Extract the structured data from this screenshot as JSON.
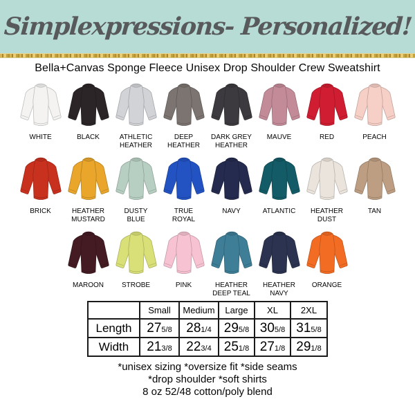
{
  "header": {
    "brand": "Simplexpressions- Personalized!",
    "bg_color": "#b6dcd5",
    "text_color": "#58595b",
    "glitter_color": "#c5a139"
  },
  "product": {
    "title": "Bella+Canvas Sponge Fleece Unisex Drop Shoulder Crew Sweatshirt"
  },
  "colors": {
    "rows": [
      [
        {
          "name": "White",
          "label_lines": [
            "WHITE"
          ],
          "hex": "#f4f3f1"
        },
        {
          "name": "Black",
          "label_lines": [
            "BLACK"
          ],
          "hex": "#2b2527"
        },
        {
          "name": "Athletic Heather",
          "label_lines": [
            "ATHLETIC",
            "HEATHER"
          ],
          "hex": "#d2d3d7"
        },
        {
          "name": "Deep Heather",
          "label_lines": [
            "DEEP",
            "HEATHER"
          ],
          "hex": "#7b7470"
        },
        {
          "name": "Dark Grey Heather",
          "label_lines": [
            "DARK GREY",
            "HEATHER"
          ],
          "hex": "#3c3a3e"
        },
        {
          "name": "Mauve",
          "label_lines": [
            "MAUVE"
          ],
          "hex": "#c38b98"
        },
        {
          "name": "Red",
          "label_lines": [
            "RED"
          ],
          "hex": "#d01d31"
        },
        {
          "name": "Peach",
          "label_lines": [
            "PEACH"
          ],
          "hex": "#f6cfc6"
        }
      ],
      [
        {
          "name": "Brick",
          "label_lines": [
            "BRICK"
          ],
          "hex": "#c9311f"
        },
        {
          "name": "Heather Mustard",
          "label_lines": [
            "HEATHER",
            "MUSTARD"
          ],
          "hex": "#e9a62b"
        },
        {
          "name": "Dusty Blue",
          "label_lines": [
            "DUSTY",
            "BLUE"
          ],
          "hex": "#b7cfc2"
        },
        {
          "name": "True Royal",
          "label_lines": [
            "TRUE",
            "ROYAL"
          ],
          "hex": "#2353c2"
        },
        {
          "name": "Navy",
          "label_lines": [
            "NAVY"
          ],
          "hex": "#252b4e"
        },
        {
          "name": "Atlantic",
          "label_lines": [
            "ATLANTIC"
          ],
          "hex": "#135b66"
        },
        {
          "name": "Heather Dust",
          "label_lines": [
            "HEATHER",
            "DUST"
          ],
          "hex": "#eae4dc"
        },
        {
          "name": "Tan",
          "label_lines": [
            "TAN"
          ],
          "hex": "#bd9e82"
        }
      ],
      [
        {
          "name": "Maroon",
          "label_lines": [
            "MAROON"
          ],
          "hex": "#441b23"
        },
        {
          "name": "Strobe",
          "label_lines": [
            "STROBE"
          ],
          "hex": "#d9e077"
        },
        {
          "name": "Pink",
          "label_lines": [
            "PINK"
          ],
          "hex": "#f7c3d3"
        },
        {
          "name": "Heather Deep Teal",
          "label_lines": [
            "HEATHER",
            "DEEP TEAL"
          ],
          "hex": "#3e7e96"
        },
        {
          "name": "Heather Navy",
          "label_lines": [
            "HEATHER",
            "NAVY"
          ],
          "hex": "#2b3350"
        },
        {
          "name": "Orange",
          "label_lines": [
            "ORANGE"
          ],
          "hex": "#f36c23"
        }
      ]
    ]
  },
  "size_table": {
    "corner": "",
    "columns": [
      "Small",
      "Medium",
      "Large",
      "XL",
      "2XL"
    ],
    "rows": [
      {
        "label": "Length",
        "values": [
          {
            "whole": "27",
            "frac": "5/8"
          },
          {
            "whole": "28",
            "frac": "1/4"
          },
          {
            "whole": "29",
            "frac": "5/8"
          },
          {
            "whole": "30",
            "frac": "5/8"
          },
          {
            "whole": "31",
            "frac": "5/8"
          }
        ]
      },
      {
        "label": "Width",
        "values": [
          {
            "whole": "21",
            "frac": "3/8"
          },
          {
            "whole": "22",
            "frac": "3/4"
          },
          {
            "whole": "25",
            "frac": "1/8"
          },
          {
            "whole": "27",
            "frac": "1/8"
          },
          {
            "whole": "29",
            "frac": "1/8"
          }
        ]
      }
    ]
  },
  "footer": {
    "lines": [
      "*unisex sizing *oversize fit *side seams",
      "*drop shoulder *soft shirts",
      "8 oz 52/48 cotton/poly blend"
    ]
  }
}
